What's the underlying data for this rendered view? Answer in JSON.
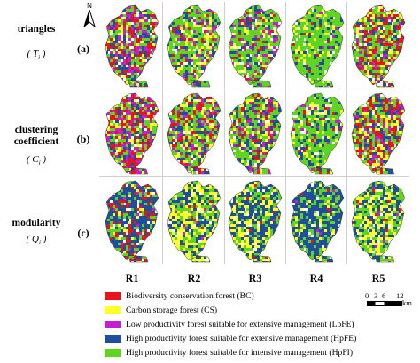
{
  "north_label": "N",
  "rows": [
    {
      "label_lines": [
        "triangles"
      ],
      "symbol": "( T",
      "sub": "i",
      "sym_close": " )",
      "letter": "(a)"
    },
    {
      "label_lines": [
        "clustering",
        "coefficient"
      ],
      "symbol": "( C",
      "sub": "i",
      "sym_close": " )",
      "letter": "(b)"
    },
    {
      "label_lines": [
        "modularity"
      ],
      "symbol": "( Q",
      "sub": "i",
      "sym_close": " )",
      "letter": "(c)"
    }
  ],
  "columns": [
    "R1",
    "R2",
    "R3",
    "R4",
    "R5"
  ],
  "legend": [
    {
      "label": "Biodiversity conservation forest (BC)",
      "color": "#e8141b"
    },
    {
      "label": "Carbon storage forest (CS)",
      "color": "#ffff2a"
    },
    {
      "label": "Low productivity forest suitable for extensive management (LpFE)",
      "color": "#c41fd0"
    },
    {
      "label": "High productivity forest suitable for extensive management (HpFE)",
      "color": "#1f4e9e"
    },
    {
      "label": "High productivity forest suitable for intensive management (HpFI)",
      "color": "#5ed51f"
    }
  ],
  "scale": {
    "ticks": [
      "0",
      "3",
      "6",
      "12"
    ],
    "unit": "km"
  },
  "colors": {
    "BC": "#e8141b",
    "CS": "#ffff2a",
    "LpFE": "#c41fd0",
    "HpFE": "#1f4e9e",
    "HpFI": "#5ed51f"
  },
  "panel_mix": [
    [
      {
        "BC": 0.18,
        "CS": 0.1,
        "LpFE": 0.22,
        "HpFE": 0.22,
        "HpFI": 0.28
      },
      {
        "BC": 0.08,
        "CS": 0.14,
        "LpFE": 0.1,
        "HpFE": 0.18,
        "HpFI": 0.5
      },
      {
        "BC": 0.08,
        "CS": 0.12,
        "LpFE": 0.1,
        "HpFE": 0.16,
        "HpFI": 0.54
      },
      {
        "BC": 0.04,
        "CS": 0.1,
        "LpFE": 0.04,
        "HpFE": 0.12,
        "HpFI": 0.7
      },
      {
        "BC": 0.3,
        "CS": 0.14,
        "LpFE": 0.1,
        "HpFE": 0.12,
        "HpFI": 0.34
      }
    ],
    [
      {
        "BC": 0.26,
        "CS": 0.1,
        "LpFE": 0.22,
        "HpFE": 0.16,
        "HpFI": 0.26
      },
      {
        "BC": 0.16,
        "CS": 0.16,
        "LpFE": 0.12,
        "HpFE": 0.2,
        "HpFI": 0.36
      },
      {
        "BC": 0.14,
        "CS": 0.14,
        "LpFE": 0.12,
        "HpFE": 0.2,
        "HpFI": 0.4
      },
      {
        "BC": 0.06,
        "CS": 0.1,
        "LpFE": 0.06,
        "HpFE": 0.16,
        "HpFI": 0.62
      },
      {
        "BC": 0.28,
        "CS": 0.16,
        "LpFE": 0.12,
        "HpFE": 0.14,
        "HpFI": 0.3
      }
    ],
    [
      {
        "BC": 0.18,
        "CS": 0.08,
        "LpFE": 0.04,
        "HpFE": 0.46,
        "HpFI": 0.24
      },
      {
        "BC": 0.02,
        "CS": 0.34,
        "LpFE": 0.02,
        "HpFE": 0.3,
        "HpFI": 0.32
      },
      {
        "BC": 0.02,
        "CS": 0.26,
        "LpFE": 0.02,
        "HpFE": 0.42,
        "HpFI": 0.28
      },
      {
        "BC": 0.01,
        "CS": 0.08,
        "LpFE": 0.01,
        "HpFE": 0.62,
        "HpFI": 0.28
      },
      {
        "BC": 0.02,
        "CS": 0.32,
        "LpFE": 0.02,
        "HpFE": 0.3,
        "HpFI": 0.34
      }
    ]
  ]
}
